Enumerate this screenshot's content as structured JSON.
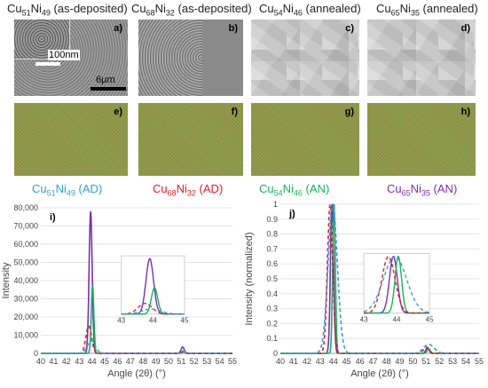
{
  "top_titles": [
    {
      "pre": "Cu",
      "s1": "51",
      "mid": "Ni",
      "s2": "49",
      "post": " (as-deposited)"
    },
    {
      "pre": "Cu",
      "s1": "68",
      "mid": "Ni",
      "s2": "32",
      "post": " (as-deposited)"
    },
    {
      "pre": "Cu",
      "s1": "54",
      "mid": "Ni",
      "s2": "46",
      "post": " (annealed)"
    },
    {
      "pre": "Cu",
      "s1": "65",
      "mid": "Ni",
      "s2": "35",
      "post": " (annealed)"
    }
  ],
  "panel_labels": {
    "a": "a)",
    "b": "b)",
    "c": "c)",
    "d": "d)",
    "e": "e)",
    "f": "f)",
    "g": "g)",
    "h": "h)",
    "i": "i)",
    "j": "j)"
  },
  "scale": {
    "inset": "100nm",
    "main": "6μm"
  },
  "captions": [
    {
      "pre": "Cu",
      "s1": "51",
      "mid": "Ni",
      "s2": "49",
      "post": " (AD)",
      "color": "#2f9fd8"
    },
    {
      "pre": "Cu",
      "s1": "68",
      "mid": "Ni",
      "s2": "32",
      "post": " (AD)",
      "color": "#e02020"
    },
    {
      "pre": "Cu",
      "s1": "54",
      "mid": "Ni",
      "s2": "46",
      "post": " (AN)",
      "color": "#16b35a"
    },
    {
      "pre": "Cu",
      "s1": "65",
      "mid": "Ni",
      "s2": "35",
      "post": " (AN)",
      "color": "#7a2fb0"
    }
  ],
  "colors": {
    "blue": "#2f9fd8",
    "red": "#e02020",
    "green": "#16b35a",
    "purple": "#7a2fb0"
  },
  "chart_data": [
    {
      "type": "line",
      "title": "",
      "xlabel": "Angle (2θ) (°)",
      "ylabel": "Intensity",
      "xlim": [
        40,
        55
      ],
      "ylim": [
        0,
        80000
      ],
      "xticks": [
        "40",
        "41",
        "42",
        "43",
        "44",
        "45",
        "46",
        "47",
        "48",
        "49",
        "50",
        "51",
        "52",
        "53",
        "54",
        "55"
      ],
      "yticks": [
        "0",
        "10,000",
        "20,000",
        "30,000",
        "40,000",
        "50,000",
        "60,000",
        "70,000",
        "80,000"
      ],
      "series": [
        {
          "color": "#7a2fb0",
          "dashed": false,
          "peaks": [
            {
              "x": 43.9,
              "h": 78000,
              "w": 0.12
            },
            {
              "x": 51.1,
              "h": 3500,
              "w": 0.12
            }
          ]
        },
        {
          "color": "#16b35a",
          "dashed": false,
          "peaks": [
            {
              "x": 44.05,
              "h": 37000,
              "w": 0.1
            },
            {
              "x": 51.2,
              "h": 1500,
              "w": 0.12
            }
          ]
        },
        {
          "color": "#e02020",
          "dashed": true,
          "peaks": [
            {
              "x": 43.75,
              "h": 15000,
              "w": 0.22
            },
            {
              "x": 51.0,
              "h": 800,
              "w": 0.2
            }
          ]
        },
        {
          "color": "#2f9fd8",
          "dashed": true,
          "peaks": [
            {
              "x": 43.95,
              "h": 7000,
              "w": 0.3
            },
            {
              "x": 51.2,
              "h": 500,
              "w": 0.3
            }
          ]
        }
      ],
      "inset": {
        "xlim": [
          43,
          45
        ],
        "xticks": [
          "43",
          "44",
          "45"
        ]
      }
    },
    {
      "type": "line",
      "title": "",
      "xlabel": "Angle (2θ) (°)",
      "ylabel": "Intensity (normalized)",
      "xlim": [
        40,
        55
      ],
      "ylim": [
        0,
        1
      ],
      "xticks": [
        "40",
        "41",
        "42",
        "43",
        "44",
        "45",
        "46",
        "47",
        "48",
        "49",
        "50",
        "51",
        "52",
        "53",
        "54",
        "55"
      ],
      "yticks": [
        "0",
        "0.1",
        "0.2",
        "0.3",
        "0.4",
        "0.5",
        "0.6",
        "0.7",
        "0.8",
        "0.9",
        "1"
      ],
      "series": [
        {
          "color": "#7a2fb0",
          "dashed": false,
          "peaks": [
            {
              "x": 43.9,
              "h": 1,
              "w": 0.12
            },
            {
              "x": 51.1,
              "h": 0.04,
              "w": 0.12
            }
          ]
        },
        {
          "color": "#16b35a",
          "dashed": false,
          "peaks": [
            {
              "x": 44.05,
              "h": 1,
              "w": 0.1
            },
            {
              "x": 51.2,
              "h": 0.03,
              "w": 0.12
            }
          ]
        },
        {
          "color": "#e02020",
          "dashed": true,
          "peaks": [
            {
              "x": 43.75,
              "h": 1,
              "w": 0.2
            },
            {
              "x": 51.0,
              "h": 0.04,
              "w": 0.2
            }
          ]
        },
        {
          "color": "#2f9fd8",
          "dashed": true,
          "peaks": [
            {
              "x": 43.95,
              "h": 1,
              "w": 0.35
            },
            {
              "x": 51.2,
              "h": 0.06,
              "w": 0.4
            }
          ]
        }
      ],
      "inset": {
        "xlim": [
          43,
          45
        ],
        "xticks": [
          "43",
          "44",
          "45"
        ]
      }
    }
  ]
}
